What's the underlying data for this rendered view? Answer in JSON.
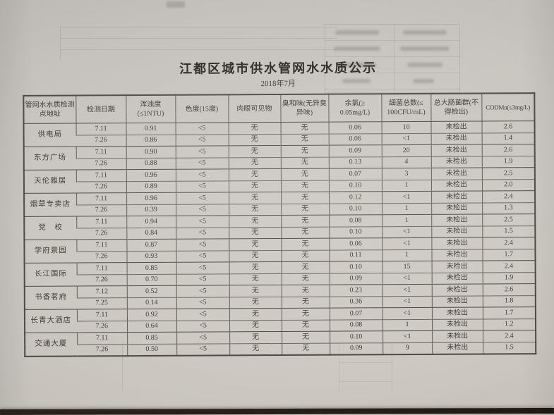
{
  "page": {
    "title": "江都区城市供水管网水水质公示",
    "subtitle": "2018年7月"
  },
  "colors": {
    "paper": "#cbc7c2",
    "ink": "#3f3e3c",
    "ink-strong": "#2e2d2b",
    "line-dark": "#4e4c49",
    "line-mid": "#5f5d59",
    "line-light": "#6d6b66",
    "desk": "#272019"
  },
  "table": {
    "headers": [
      "管网水水质检测点地址",
      "检测日期",
      "浑浊度(≤1NTU)",
      "色度(15度)",
      "肉眼可见物",
      "臭和味(无异臭异味)",
      "余氯(≥ 0.05mg/L)",
      "细菌总数(≤ 100CFU/mL)",
      "总大肠菌群(不得检出)",
      "CODMn(≤3mg/L)"
    ],
    "column_keys": [
      "检测日期",
      "浑浊度",
      "色度",
      "肉眼可见物",
      "臭和味",
      "余氯",
      "细菌总数",
      "总大肠菌群",
      "CODMn"
    ],
    "locations": [
      {
        "name": "供电局",
        "rows": [
          [
            "7.11",
            "0.91",
            "<5",
            "无",
            "无",
            "0.06",
            "10",
            "未检出",
            "2.6"
          ],
          [
            "7.26",
            "0.86",
            "<5",
            "无",
            "无",
            "0.06",
            "<1",
            "未检出",
            "1.4"
          ]
        ]
      },
      {
        "name": "东方广场",
        "rows": [
          [
            "7.11",
            "0.90",
            "<5",
            "无",
            "无",
            "0.09",
            "20",
            "未检出",
            "2.6"
          ],
          [
            "7.26",
            "0.88",
            "<5",
            "无",
            "无",
            "0.13",
            "4",
            "未检出",
            "1.9"
          ]
        ]
      },
      {
        "name": "天伦雅居",
        "rows": [
          [
            "7.11",
            "0.96",
            "<5",
            "无",
            "无",
            "0.07",
            "3",
            "未检出",
            "2.5"
          ],
          [
            "7.26",
            "0.89",
            "<5",
            "无",
            "无",
            "0.10",
            "1",
            "未检出",
            "2.0"
          ]
        ]
      },
      {
        "name": "烟草专卖店",
        "rows": [
          [
            "7.11",
            "0.96",
            "<5",
            "无",
            "无",
            "0.12",
            "<1",
            "未检出",
            "2.4"
          ],
          [
            "7.26",
            "0.39",
            "<5",
            "无",
            "无",
            "0.10",
            "1",
            "未检出",
            "1.3"
          ]
        ]
      },
      {
        "name": "党　校",
        "rows": [
          [
            "7.11",
            "0.94",
            "<5",
            "无",
            "无",
            "0.08",
            "1",
            "未检出",
            "2.5"
          ],
          [
            "7.26",
            "0.84",
            "<5",
            "无",
            "无",
            "0.10",
            "<1",
            "未检出",
            "1.5"
          ]
        ]
      },
      {
        "name": "学府景园",
        "rows": [
          [
            "7.11",
            "0.87",
            "<5",
            "无",
            "无",
            "0.06",
            "<1",
            "未检出",
            "2.4"
          ],
          [
            "7.26",
            "0.93",
            "<5",
            "无",
            "无",
            "0.11",
            "1",
            "未检出",
            "1.7"
          ]
        ]
      },
      {
        "name": "长江国际",
        "rows": [
          [
            "7.11",
            "0.85",
            "<5",
            "无",
            "无",
            "0.10",
            "15",
            "未检出",
            "2.4"
          ],
          [
            "7.26",
            "0.70",
            "<5",
            "无",
            "无",
            "0.09",
            "<1",
            "未检出",
            "1.9"
          ]
        ]
      },
      {
        "name": "书香茗府",
        "rows": [
          [
            "7.12",
            "0.52",
            "<5",
            "无",
            "无",
            "0.23",
            "<1",
            "未检出",
            "2.6"
          ],
          [
            "7.25",
            "0.14",
            "<5",
            "无",
            "无",
            "0.36",
            "<1",
            "未检出",
            "1.8"
          ]
        ]
      },
      {
        "name": "长青大酒店",
        "rows": [
          [
            "7.11",
            "0.92",
            "<5",
            "无",
            "无",
            "0.07",
            "<1",
            "未检出",
            "1.7"
          ],
          [
            "7.26",
            "0.64",
            "<5",
            "无",
            "无",
            "0.08",
            "1",
            "未检出",
            "1.2"
          ]
        ]
      },
      {
        "name": "交通大厦",
        "rows": [
          [
            "7.11",
            "0.85",
            "<5",
            "无",
            "无",
            "0.10",
            "<1",
            "未检出",
            "2.4"
          ],
          [
            "7.26",
            "0.50",
            "<5",
            "无",
            "无",
            "0.09",
            "9",
            "未检出",
            "1.5"
          ]
        ]
      }
    ]
  }
}
